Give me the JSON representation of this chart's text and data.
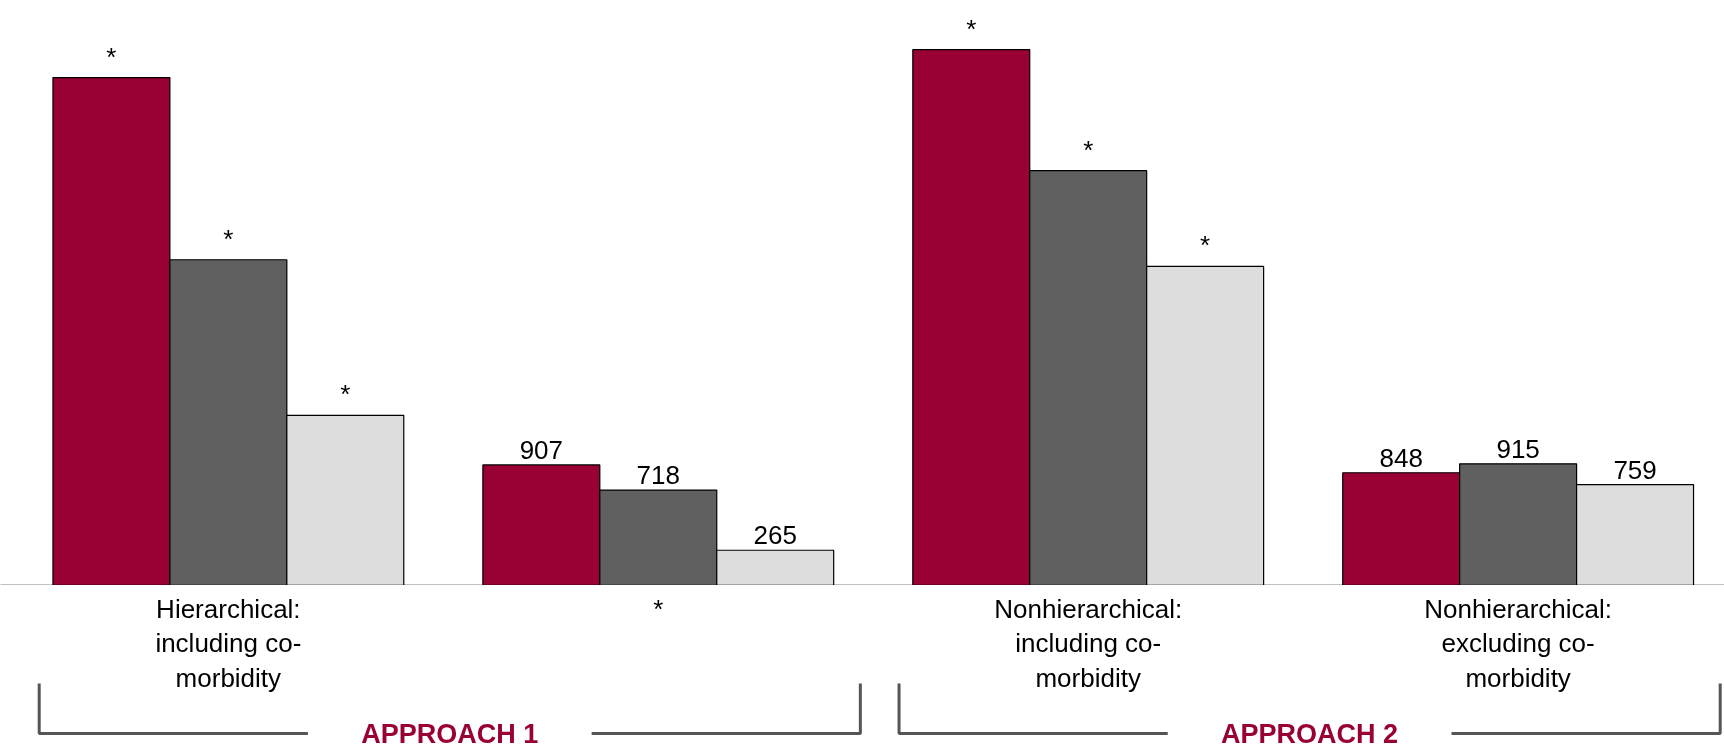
{
  "chart_data": {
    "type": "bar",
    "categories": [
      "Hierarchical: including co-morbidity",
      "*",
      "Nonhierarchical: including co-morbidity",
      "Nonhierarchical: excluding co-morbidity"
    ],
    "series": [
      {
        "color": "#990033",
        "values": [
          3820,
          907,
          4030,
          848
        ],
        "value_labels": [
          "*",
          "907",
          "*",
          "848"
        ]
      },
      {
        "color": "#606060",
        "values": [
          2450,
          718,
          3120,
          915
        ],
        "value_labels": [
          "*",
          "718",
          "*",
          "915"
        ]
      },
      {
        "color": "#dddddd",
        "values": [
          1280,
          265,
          2400,
          759
        ],
        "value_labels": [
          "*",
          "265",
          "*",
          "759"
        ]
      }
    ],
    "ylim": [
      0,
      4400
    ],
    "annotations": [
      "APPROACH 1",
      "APPROACH 2"
    ],
    "tick_labels": "x",
    "grid": false
  }
}
